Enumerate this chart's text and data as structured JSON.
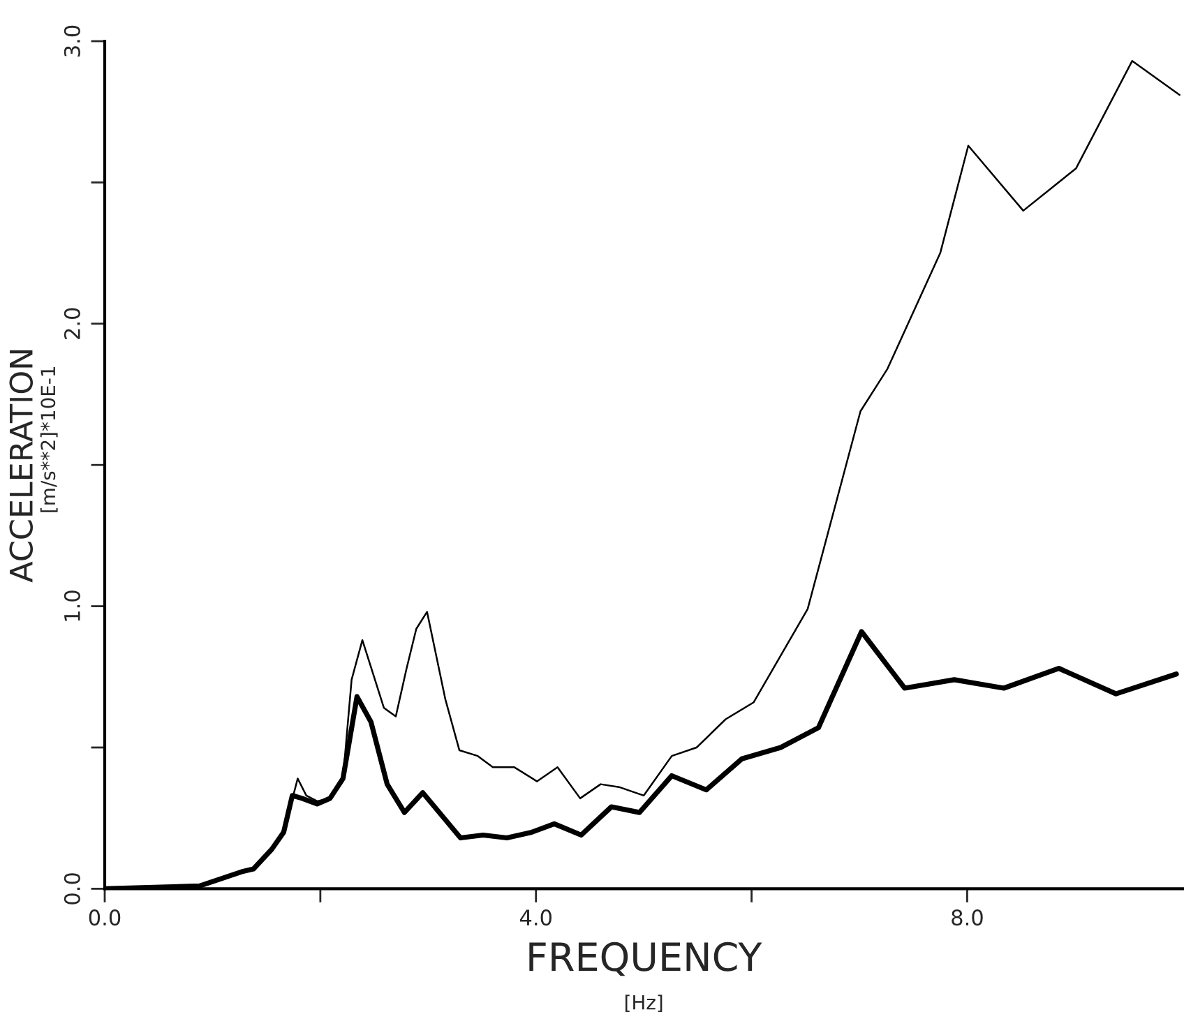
{
  "chart_data": {
    "type": "line",
    "xlabel": "FREQUENCY",
    "ylabel": "ACCELERATION",
    "annotations": [
      "[Hz]",
      "[m/s**2]*10E-1"
    ],
    "xlim": [
      0,
      10
    ],
    "ylim": [
      0,
      3
    ],
    "xticks": [
      {
        "value": 0,
        "label": "0.0"
      },
      {
        "value": 2,
        "label": null
      },
      {
        "value": 4,
        "label": "4.0"
      },
      {
        "value": 6,
        "label": null
      },
      {
        "value": 8,
        "label": "8.0"
      }
    ],
    "yticks": [
      {
        "value": 0,
        "label": "0.0"
      },
      {
        "value": 0.5,
        "label": null
      },
      {
        "value": 1,
        "label": "1.0"
      },
      {
        "value": 1.5,
        "label": null
      },
      {
        "value": 2,
        "label": "2.0"
      },
      {
        "value": 2.5,
        "label": null
      },
      {
        "value": 3,
        "label": "3.0"
      }
    ],
    "grid": false,
    "legend": false,
    "marker": "none",
    "line_style": "solid",
    "series": [
      {
        "color": "#000000",
        "x": [
          0,
          0.88,
          1.27,
          1.38,
          1.55,
          1.66,
          1.79,
          1.87,
          1.97,
          2.09,
          2.21,
          2.29,
          2.39,
          2.59,
          2.7,
          2.8,
          2.89,
          2.99,
          3.16,
          3.29,
          3.46,
          3.6,
          3.8,
          4.01,
          4.2,
          4.41,
          4.6,
          4.77,
          5.0,
          5.26,
          5.49,
          5.76,
          6.02,
          6.52,
          7.01,
          7.26,
          7.75,
          8.01,
          8.52,
          9.01,
          9.53,
          9.97
        ],
        "values": [
          0,
          0.01,
          0.06,
          0.07,
          0.14,
          0.2,
          0.39,
          0.33,
          0.31,
          0.32,
          0.39,
          0.74,
          0.88,
          0.64,
          0.61,
          0.78,
          0.92,
          0.98,
          0.67,
          0.49,
          0.47,
          0.43,
          0.43,
          0.38,
          0.43,
          0.32,
          0.37,
          0.36,
          0.33,
          0.47,
          0.5,
          0.6,
          0.66,
          0.99,
          1.69,
          1.84,
          2.25,
          2.63,
          2.4,
          2.55,
          2.93,
          2.81
        ]
      },
      {
        "color": "#000000",
        "x": [
          0,
          0.88,
          1.27,
          1.38,
          1.55,
          1.66,
          1.74,
          1.83,
          1.97,
          2.09,
          2.21,
          2.34,
          2.47,
          2.62,
          2.78,
          2.95,
          3.3,
          3.51,
          3.73,
          3.96,
          4.17,
          4.42,
          4.7,
          4.96,
          5.26,
          5.58,
          5.91,
          6.27,
          6.62,
          7.02,
          7.42,
          7.88,
          8.34,
          8.85,
          9.38,
          9.94
        ],
        "values": [
          0,
          0.01,
          0.06,
          0.07,
          0.14,
          0.2,
          0.33,
          0.32,
          0.3,
          0.32,
          0.39,
          0.68,
          0.59,
          0.37,
          0.27,
          0.34,
          0.18,
          0.19,
          0.18,
          0.2,
          0.23,
          0.19,
          0.29,
          0.27,
          0.4,
          0.35,
          0.46,
          0.5,
          0.57,
          0.91,
          0.71,
          0.74,
          0.71,
          0.78,
          0.69,
          0.76
        ]
      }
    ]
  }
}
